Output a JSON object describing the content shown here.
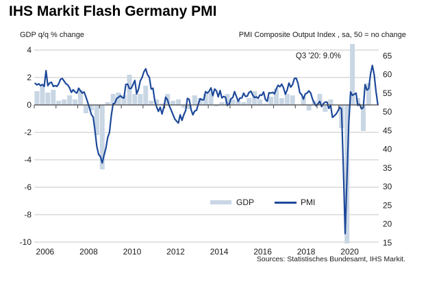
{
  "header": {
    "title": "IHS Markit Flash Germany PMI"
  },
  "axis_titles": {
    "left": "GDP q/q % change",
    "right": "PMI Composite Output Index , sa, 50 = no change"
  },
  "legend": {
    "gdp": "GDP",
    "pmi": "PMI"
  },
  "footer": {
    "sources": "Sources: Statistisches Bundesamt, IHS Markit."
  },
  "colors": {
    "gdp_bar": "#c9d6e4",
    "pmi_line": "#1c4899",
    "gridline": "#c4c4c4",
    "axis": "#404040",
    "text": "#1a1a1a"
  },
  "chart_data": {
    "type": "bar+line",
    "title": "IHS Markit Flash Germany PMI",
    "grid": "horizontal",
    "legend_position": "bottom-center-inside",
    "annotation": {
      "text": "Q3 '20: 9.0%",
      "target": "GDP 2020Q3 bar (clipped at top)"
    },
    "x_axis": {
      "start": "2006-01",
      "end": "2021-10",
      "tick_labels": [
        "2006",
        "2008",
        "2010",
        "2012",
        "2014",
        "2016",
        "2018",
        "2020"
      ],
      "year_ticks_every": 1
    },
    "left_axis": {
      "label": "GDP q/q % change",
      "ticks": [
        4,
        2,
        0,
        -2,
        -4,
        -6,
        -8,
        -10
      ],
      "range": [
        -10.15,
        4.45
      ]
    },
    "right_axis": {
      "label": "PMI Composite Output Index , sa, 50 = no change",
      "ticks": [
        65,
        60,
        55,
        50,
        45,
        40,
        35,
        30,
        25,
        20,
        15
      ],
      "range": [
        14.2,
        68.2
      ]
    },
    "series": [
      {
        "name": "GDP",
        "type": "bar",
        "axis": "left",
        "frequency": "quarterly",
        "start": "2006Q1",
        "values": [
          1.0,
          1.4,
          0.9,
          1.1,
          0.3,
          0.4,
          0.7,
          0.4,
          1.1,
          -0.6,
          -0.4,
          -2.2,
          -4.7,
          0.2,
          0.8,
          0.9,
          0.7,
          2.2,
          0.8,
          0.8,
          1.4,
          0.3,
          0.4,
          0.1,
          0.8,
          0.3,
          0.4,
          -0.2,
          -0.3,
          0.7,
          0.5,
          0.8,
          0.9,
          -0.1,
          0.2,
          0.8,
          0.4,
          0.3,
          0.2,
          0.5,
          1.0,
          0.4,
          0.1,
          0.6,
          1.2,
          0.5,
          0.8,
          0.7,
          0.0,
          0.6,
          -0.4,
          0.3,
          0.8,
          -0.5,
          0.4,
          0.0,
          -1.7,
          -10.1,
          9.0,
          0.5,
          -1.9,
          1.6
        ]
      },
      {
        "name": "PMI",
        "type": "line",
        "axis": "right",
        "frequency": "monthly",
        "start": "2006-01",
        "values": [
          57.6,
          57.2,
          57.5,
          57.0,
          57.3,
          56.8,
          61.0,
          57.0,
          57.7,
          57.9,
          56.8,
          57.0,
          56.8,
          57.5,
          58.7,
          58.9,
          58.2,
          57.5,
          57.2,
          56.4,
          55.2,
          55.9,
          55.3,
          55.0,
          56.3,
          55.6,
          55.0,
          55.3,
          54.0,
          52.5,
          51.0,
          49.3,
          48.6,
          45.0,
          40.8,
          38.6,
          38.0,
          36.3,
          38.4,
          40.2,
          43.1,
          44.5,
          49.0,
          52.1,
          52.3,
          53.6,
          53.9,
          54.3,
          53.8,
          53.7,
          57.3,
          57.4,
          56.2,
          56.3,
          57.3,
          58.4,
          54.8,
          56.0,
          58.3,
          59.2,
          60.7,
          61.5,
          59.9,
          59.2,
          56.1,
          56.3,
          52.9,
          51.3,
          50.1,
          51.2,
          49.4,
          51.3,
          53.9,
          53.2,
          51.6,
          50.5,
          49.3,
          48.1,
          47.5,
          47.0,
          49.2,
          47.7,
          49.2,
          50.3,
          53.6,
          53.3,
          50.6,
          49.2,
          50.2,
          50.4,
          52.1,
          53.5,
          53.2,
          53.2,
          55.4,
          55.0,
          55.5,
          56.4,
          54.3,
          56.1,
          55.6,
          54.0,
          55.7,
          53.7,
          54.1,
          53.9,
          51.7,
          52.0,
          53.5,
          53.8,
          55.4,
          54.1,
          52.8,
          53.7,
          53.7,
          55.0,
          54.1,
          54.2,
          55.2,
          55.5,
          54.5,
          53.8,
          54.0,
          53.6,
          54.5,
          54.4,
          55.3,
          53.3,
          52.8,
          55.1,
          55.0,
          55.2,
          54.8,
          56.1,
          57.1,
          56.7,
          57.4,
          56.4,
          54.7,
          55.8,
          57.7,
          56.6,
          57.3,
          58.9,
          59.0,
          57.6,
          55.1,
          54.6,
          53.4,
          54.8,
          55.0,
          55.6,
          55.0,
          53.4,
          52.3,
          51.6,
          52.1,
          52.8,
          51.4,
          52.2,
          52.6,
          52.6,
          50.9,
          51.7,
          48.5,
          48.9,
          49.4,
          50.2,
          51.2,
          50.7,
          35.0,
          17.4,
          32.3,
          47.0,
          55.3,
          54.4,
          54.7,
          55.0,
          51.7,
          52.0,
          50.8,
          51.1,
          57.3,
          55.8,
          56.2,
          60.1,
          62.4,
          60.0,
          55.5,
          52.0
        ]
      }
    ]
  }
}
